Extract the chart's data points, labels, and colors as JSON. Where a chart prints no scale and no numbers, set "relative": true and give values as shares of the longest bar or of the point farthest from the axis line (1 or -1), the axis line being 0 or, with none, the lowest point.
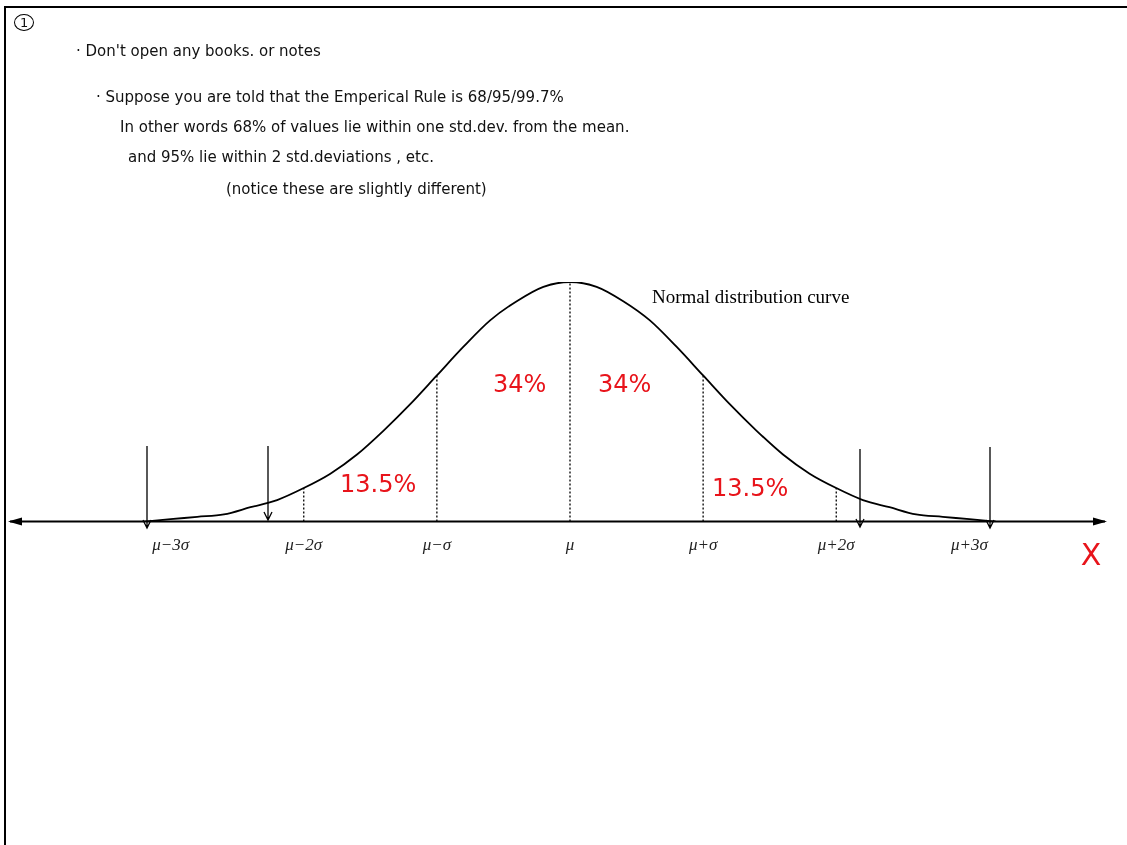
{
  "chart_data": {
    "type": "line",
    "relative": true,
    "xlabel": "X",
    "annotations": [
      "1",
      "· Don't open any books. or notes",
      "· Suppose you are told that the Emperical Rule is 68/95/99.7%",
      "In other words 68% of values lie within one std.dev. from the mean.",
      "and 95% lie within 2 std.deviations , etc.",
      "(notice these are slightly different)",
      "34%",
      "34%",
      "13.5%",
      "13.5%"
    ],
    "categories": [
      null,
      "μ−3σ",
      null,
      null,
      null,
      null,
      "μ−2σ",
      null,
      null,
      null,
      null,
      "μ−σ",
      null,
      null,
      null,
      null,
      "μ",
      null,
      null,
      null,
      null,
      "μ+σ",
      null,
      null,
      null,
      null,
      "μ+2σ",
      null,
      null,
      null,
      null,
      "μ+3σ",
      null
    ],
    "series": [
      {
        "name": "Normal distribution curve",
        "color": "#000000",
        "values": [
          0.0,
          0.01,
          0.02,
          0.03,
          0.06,
          0.09,
          0.14,
          0.2,
          0.28,
          0.38,
          0.49,
          0.61,
          0.73,
          0.84,
          0.92,
          0.98,
          1,
          0.98,
          0.92,
          0.84,
          0.73,
          0.61,
          0.49,
          0.38,
          0.28,
          0.2,
          0.14,
          0.09,
          0.06,
          0.03,
          0.02,
          0.01,
          0.0
        ]
      }
    ],
    "ref_lines": [
      {
        "axis": "x",
        "value": "μ−2σ",
        "line_style": "dotted"
      },
      {
        "axis": "x",
        "value": "μ−σ",
        "line_style": "dotted"
      },
      {
        "axis": "x",
        "value": "μ",
        "line_style": "dotted"
      },
      {
        "axis": "x",
        "value": "μ+σ",
        "line_style": "dotted"
      },
      {
        "axis": "x",
        "value": "μ+2σ",
        "line_style": "dotted"
      }
    ],
    "grid": false,
    "legend": false,
    "marker": "none",
    "line_style": "solid"
  }
}
